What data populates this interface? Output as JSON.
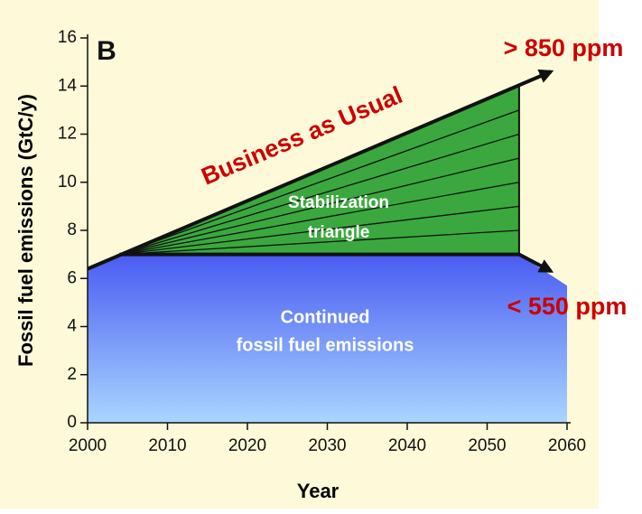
{
  "chart_data": {
    "type": "wedge",
    "x_label": "Year",
    "y_label": "Fossil fuel emissions (GtC/y)",
    "xlim": [
      2000,
      2060
    ],
    "ylim": [
      0,
      16
    ],
    "xticks": [
      2000,
      2010,
      2020,
      2030,
      2040,
      2050,
      2060
    ],
    "yticks": [
      0,
      2,
      4,
      6,
      8,
      10,
      12,
      14,
      16
    ],
    "continued": {
      "x": [
        2000,
        2004,
        2054,
        2060
      ],
      "values": [
        6.4,
        7,
        7,
        5.7
      ],
      "color": "#4a5cf2"
    },
    "triangle": {
      "x": [
        2004,
        2054,
        2054
      ],
      "values": [
        7,
        7,
        14
      ],
      "color": "#3aa83e"
    },
    "wedge_levels": [
      8,
      9,
      10,
      11,
      12,
      13
    ],
    "bau": {
      "x": [
        2000,
        2058
      ],
      "values": [
        6.4,
        14.6
      ]
    },
    "stabilized": {
      "x": [
        2004,
        2054,
        2058
      ],
      "values": [
        7,
        7,
        6.3
      ]
    },
    "annotations": [
      "B",
      "Business as Usual",
      "Stabilization",
      "triangle",
      "Continued",
      "fossil fuel emissions",
      "> 850 ppm",
      "< 550 ppm"
    ]
  }
}
